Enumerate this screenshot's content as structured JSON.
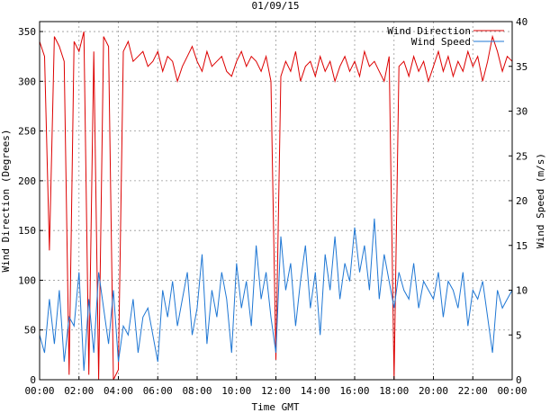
{
  "chart_data": {
    "type": "line",
    "title": "01/09/15",
    "xlabel": "Time GMT",
    "ylabel_left": "Wind Direction (Degrees)",
    "ylabel_right": "Wind Speed (m/s)",
    "xlim": [
      0,
      24
    ],
    "ylim_left": [
      0,
      360
    ],
    "ylim_right": [
      0,
      40
    ],
    "x_ticks": [
      "00:00",
      "02:00",
      "04:00",
      "06:00",
      "08:00",
      "10:00",
      "12:00",
      "14:00",
      "16:00",
      "18:00",
      "20:00",
      "22:00",
      "00:00"
    ],
    "y_ticks_left": [
      "0",
      "50",
      "100",
      "150",
      "200",
      "250",
      "300",
      "350"
    ],
    "y_ticks_right": [
      "0",
      "5",
      "10",
      "15",
      "20",
      "25",
      "30",
      "35",
      "40"
    ],
    "grid": true,
    "legend_position": "top-right",
    "series": [
      {
        "name": "Wind Direction",
        "axis": "left",
        "color": "#dd0000",
        "x_hours": [
          0,
          0.25,
          0.5,
          0.75,
          1,
          1.25,
          1.5,
          1.75,
          2,
          2.25,
          2.5,
          2.75,
          3,
          3.25,
          3.5,
          3.75,
          4,
          4.25,
          4.5,
          4.75,
          5,
          5.25,
          5.5,
          5.75,
          6,
          6.25,
          6.5,
          6.75,
          7,
          7.25,
          7.5,
          7.75,
          8,
          8.25,
          8.5,
          8.75,
          9,
          9.25,
          9.5,
          9.75,
          10,
          10.25,
          10.5,
          10.75,
          11,
          11.25,
          11.5,
          11.75,
          12,
          12.25,
          12.5,
          12.75,
          13,
          13.25,
          13.5,
          13.75,
          14,
          14.25,
          14.5,
          14.75,
          15,
          15.25,
          15.5,
          15.75,
          16,
          16.25,
          16.5,
          16.75,
          17,
          17.25,
          17.5,
          17.75,
          18,
          18.25,
          18.5,
          18.75,
          19,
          19.25,
          19.5,
          19.75,
          20,
          20.25,
          20.5,
          20.75,
          21,
          21.25,
          21.5,
          21.75,
          22,
          22.25,
          22.5,
          22.75,
          23,
          23.25,
          23.5,
          23.75,
          24
        ],
        "values": [
          340,
          325,
          130,
          345,
          335,
          320,
          5,
          340,
          330,
          350,
          5,
          330,
          0,
          345,
          335,
          0,
          10,
          330,
          340,
          320,
          325,
          330,
          315,
          320,
          330,
          310,
          325,
          320,
          300,
          315,
          325,
          335,
          320,
          310,
          330,
          315,
          320,
          325,
          310,
          305,
          320,
          330,
          315,
          325,
          320,
          310,
          325,
          300,
          20,
          305,
          320,
          310,
          330,
          300,
          315,
          320,
          305,
          325,
          310,
          320,
          300,
          315,
          325,
          310,
          320,
          305,
          330,
          315,
          320,
          310,
          300,
          325,
          0,
          315,
          320,
          305,
          325,
          310,
          320,
          300,
          315,
          330,
          310,
          325,
          305,
          320,
          310,
          330,
          315,
          325,
          300,
          320,
          345,
          330,
          310,
          325,
          320
        ]
      },
      {
        "name": "Wind Speed",
        "axis": "right",
        "color": "#1f77d4",
        "x_hours": [
          0,
          0.25,
          0.5,
          0.75,
          1,
          1.25,
          1.5,
          1.75,
          2,
          2.25,
          2.5,
          2.75,
          3,
          3.25,
          3.5,
          3.75,
          4,
          4.25,
          4.5,
          4.75,
          5,
          5.25,
          5.5,
          5.75,
          6,
          6.25,
          6.5,
          6.75,
          7,
          7.25,
          7.5,
          7.75,
          8,
          8.25,
          8.5,
          8.75,
          9,
          9.25,
          9.5,
          9.75,
          10,
          10.25,
          10.5,
          10.75,
          11,
          11.25,
          11.5,
          11.75,
          12,
          12.25,
          12.5,
          12.75,
          13,
          13.25,
          13.5,
          13.75,
          14,
          14.25,
          14.5,
          14.75,
          15,
          15.25,
          15.5,
          15.75,
          16,
          16.25,
          16.5,
          16.75,
          17,
          17.25,
          17.5,
          17.75,
          18,
          18.25,
          18.5,
          18.75,
          19,
          19.25,
          19.5,
          19.75,
          20,
          20.25,
          20.5,
          20.75,
          21,
          21.25,
          21.5,
          21.75,
          22,
          22.25,
          22.5,
          22.75,
          23,
          23.25,
          23.5,
          23.75,
          24
        ],
        "values": [
          5,
          3,
          9,
          4,
          10,
          2,
          7,
          6,
          12,
          1,
          9,
          3,
          12,
          8,
          4,
          10,
          2,
          6,
          5,
          9,
          3,
          7,
          8,
          5,
          2,
          10,
          7,
          11,
          6,
          9,
          12,
          5,
          8,
          14,
          4,
          10,
          7,
          12,
          9,
          3,
          13,
          8,
          11,
          6,
          15,
          9,
          12,
          7,
          3,
          16,
          10,
          13,
          6,
          11,
          15,
          8,
          12,
          5,
          14,
          10,
          16,
          9,
          13,
          11,
          17,
          12,
          15,
          10,
          18,
          9,
          14,
          11,
          8,
          12,
          10,
          9,
          13,
          8,
          11,
          10,
          9,
          12,
          7,
          11,
          10,
          8,
          12,
          6,
          10,
          9,
          11,
          7,
          3,
          10,
          8,
          9,
          10
        ]
      }
    ]
  }
}
